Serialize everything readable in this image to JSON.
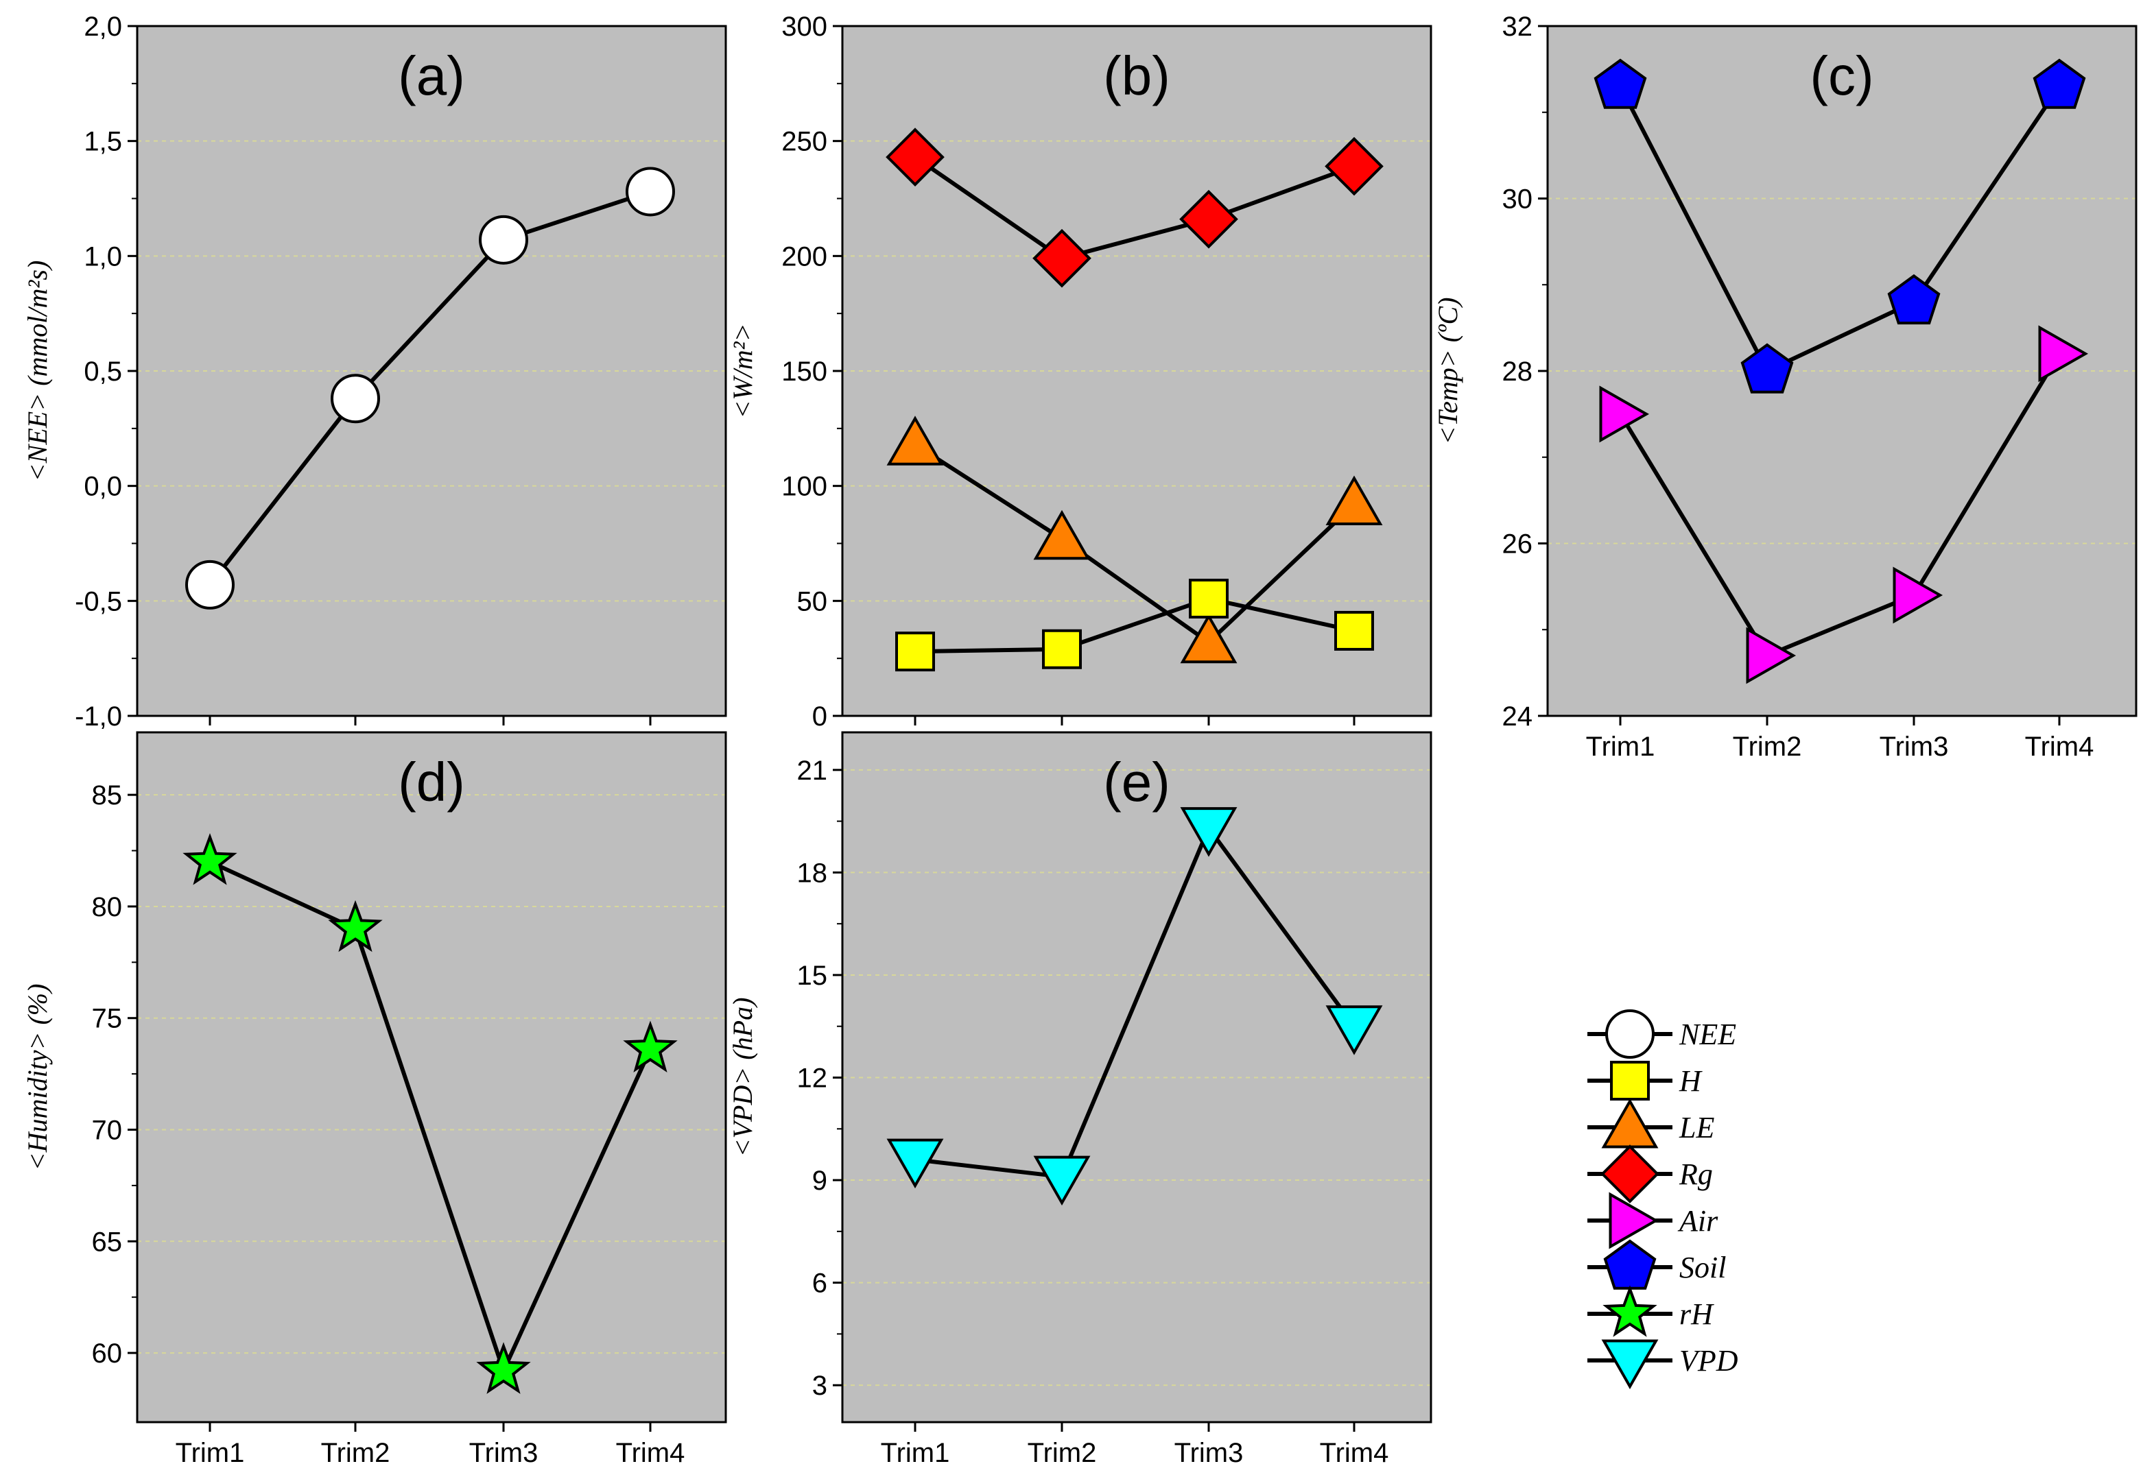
{
  "chart_data": [
    {
      "id": "a",
      "type": "line",
      "title": "(a)",
      "ylabel": "<NEE> (mmol/m²s)",
      "categories": [
        "Trim1",
        "Trim2",
        "Trim3",
        "Trim4"
      ],
      "ylim": [
        -1.0,
        2.0
      ],
      "yticks": [
        -1.0,
        -0.5,
        0.0,
        0.5,
        1.0,
        1.5,
        2.0
      ],
      "ytick_labels": [
        "-1,0",
        "-0,5",
        "0,0",
        "0,5",
        "1,0",
        "1,5",
        "2,0"
      ],
      "show_xticklabels": false,
      "grid": true,
      "series": [
        {
          "name": "NEE",
          "marker": "circle",
          "color": "#ffffff",
          "values": [
            -0.43,
            0.38,
            1.07,
            1.28
          ]
        }
      ]
    },
    {
      "id": "b",
      "type": "line",
      "title": "(b)",
      "ylabel": "<W/m²>",
      "categories": [
        "Trim1",
        "Trim2",
        "Trim3",
        "Trim4"
      ],
      "ylim": [
        0,
        300
      ],
      "yticks": [
        0,
        50,
        100,
        150,
        200,
        250,
        300
      ],
      "ytick_labels": [
        "0",
        "50",
        "100",
        "150",
        "200",
        "250",
        "300"
      ],
      "show_xticklabels": false,
      "grid": true,
      "series": [
        {
          "name": "Rg",
          "marker": "diamond",
          "color": "#ff0000",
          "values": [
            243,
            199,
            216,
            239
          ]
        },
        {
          "name": "LE",
          "marker": "triangle-up",
          "color": "#ff8000",
          "values": [
            118,
            77,
            32,
            92
          ]
        },
        {
          "name": "H",
          "marker": "square",
          "color": "#ffff00",
          "values": [
            28,
            29,
            51,
            37
          ]
        }
      ]
    },
    {
      "id": "c",
      "type": "line",
      "title": "(c)",
      "ylabel": "<Temp> (ºC)",
      "categories": [
        "Trim1",
        "Trim2",
        "Trim3",
        "Trim4"
      ],
      "ylim": [
        24,
        32
      ],
      "yticks": [
        24,
        26,
        28,
        30,
        32
      ],
      "ytick_labels": [
        "24",
        "26",
        "28",
        "30",
        "32"
      ],
      "show_xticklabels": true,
      "grid": true,
      "series": [
        {
          "name": "Soil",
          "marker": "pentagon",
          "color": "#0000ff",
          "values": [
            31.3,
            28.0,
            28.8,
            31.3
          ]
        },
        {
          "name": "Air",
          "marker": "triangle-right",
          "color": "#ff00ff",
          "values": [
            27.5,
            24.7,
            25.4,
            28.2
          ]
        }
      ]
    },
    {
      "id": "d",
      "type": "line",
      "title": "(d)",
      "ylabel": "<Humidity> (%)",
      "categories": [
        "Trim1",
        "Trim2",
        "Trim3",
        "Trim4"
      ],
      "ylim": [
        56.9,
        87.8
      ],
      "yticks": [
        60,
        65,
        70,
        75,
        80,
        85
      ],
      "ytick_labels": [
        "60",
        "65",
        "70",
        "75",
        "80",
        "85"
      ],
      "show_xticklabels": true,
      "grid": true,
      "series": [
        {
          "name": "rH",
          "marker": "star",
          "color": "#00ff00",
          "values": [
            82.0,
            79.0,
            59.2,
            73.6
          ]
        }
      ]
    },
    {
      "id": "e",
      "type": "line",
      "title": "(e)",
      "ylabel": "<VPD> (hPa)",
      "categories": [
        "Trim1",
        "Trim2",
        "Trim3",
        "Trim4"
      ],
      "ylim": [
        1.92,
        22.1
      ],
      "yticks": [
        3,
        6,
        9,
        12,
        15,
        18,
        21
      ],
      "ytick_labels": [
        "3",
        "6",
        "9",
        "12",
        "15",
        "18",
        "21"
      ],
      "show_xticklabels": true,
      "grid": true,
      "series": [
        {
          "name": "VPD",
          "marker": "triangle-down",
          "color": "#00ffff",
          "values": [
            9.6,
            9.1,
            19.3,
            13.5
          ]
        }
      ]
    }
  ],
  "legend": {
    "placement": "bottom-right",
    "items": [
      {
        "label": "NEE",
        "marker": "circle",
        "color": "#ffffff"
      },
      {
        "label": "H",
        "marker": "square",
        "color": "#ffff00"
      },
      {
        "label": "LE",
        "marker": "triangle-up",
        "color": "#ff8000"
      },
      {
        "label": "Rg",
        "marker": "diamond",
        "color": "#ff0000"
      },
      {
        "label": "Air",
        "marker": "triangle-right",
        "color": "#ff00ff"
      },
      {
        "label": "Soil",
        "marker": "pentagon",
        "color": "#0000ff"
      },
      {
        "label": "rH",
        "marker": "star",
        "color": "#00ff00"
      },
      {
        "label": "VPD",
        "marker": "triangle-down",
        "color": "#00ffff"
      }
    ]
  },
  "style": {
    "panel_background": "#bebebe",
    "grid_color": "#d8d89a",
    "line_color": "#000000"
  }
}
